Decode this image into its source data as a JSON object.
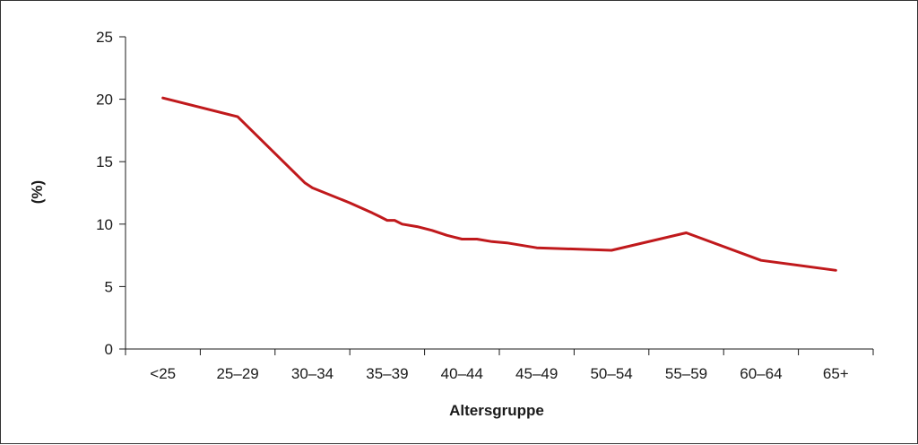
{
  "chart_data": {
    "type": "line",
    "title": "",
    "xlabel": "Altersgruppe",
    "ylabel": "(%)",
    "categories": [
      "<25",
      "25–29",
      "30–34",
      "35–39",
      "40–44",
      "45–49",
      "50–54",
      "55–59",
      "60–64",
      "65+"
    ],
    "yticks": [
      "0",
      "5",
      "10",
      "15",
      "20",
      "25"
    ],
    "ylim": [
      0,
      25
    ],
    "grid": false,
    "legend": "none",
    "line_color": "#c0191c",
    "series": [
      {
        "x": [
          0,
          1,
          1.9,
          2,
          2.5,
          2.8,
          2.9,
          3.0,
          3.1,
          3.2,
          3.4,
          3.6,
          3.8,
          4.0,
          4.2,
          4.4,
          4.6,
          5.0,
          6.0,
          7.0,
          8.0,
          9.0
        ],
        "values": [
          20.1,
          18.6,
          13.3,
          12.9,
          11.7,
          10.9,
          10.6,
          10.3,
          10.3,
          10.0,
          9.8,
          9.5,
          9.1,
          8.8,
          8.8,
          8.6,
          8.5,
          8.1,
          7.9,
          9.3,
          7.1,
          6.3
        ]
      }
    ]
  }
}
